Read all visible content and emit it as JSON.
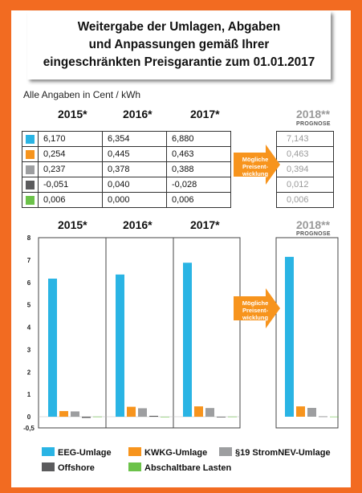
{
  "title_lines": [
    "Weitergabe der Umlagen, Abgaben",
    "und Anpassungen gemäß Ihrer",
    "eingeschränkten Preisgarantie zum 01.01.2017"
  ],
  "unit_label": "Alle Angaben in Cent / kWh",
  "years": [
    "2015*",
    "2016*",
    "2017*"
  ],
  "forecast_year": "2018**",
  "forecast_sub": "PROGNOSE",
  "arrow_text": [
    "Mögliche",
    "Preisent-",
    "wicklung"
  ],
  "table_rows": [
    {
      "color": "#2ab4e4",
      "v2015": "6,170",
      "v2016": "6,354",
      "v2017": "6,880",
      "v2018": "7,143"
    },
    {
      "color": "#f7941d",
      "v2015": "0,254",
      "v2016": "0,445",
      "v2017": "0,463",
      "v2018": "0,463"
    },
    {
      "color": "#9d9ea0",
      "v2015": "0,237",
      "v2016": "0,378",
      "v2017": "0,388",
      "v2018": "0,394"
    },
    {
      "color": "#5b5b5d",
      "v2015": "-0,051",
      "v2016": "0,040",
      "v2017": "-0,028",
      "v2018": "0,012"
    },
    {
      "color": "#6cc24a",
      "v2015": "0,006",
      "v2016": "0,000",
      "v2017": "0,006",
      "v2018": "0,006"
    }
  ],
  "chart_data": {
    "type": "bar",
    "categories": [
      "2015*",
      "2016*",
      "2017*",
      "2018**"
    ],
    "series": [
      {
        "name": "EEG-Umlage",
        "color": "#2ab4e4",
        "values": [
          6.17,
          6.354,
          6.88,
          7.143
        ]
      },
      {
        "name": "KWKG-Umlage",
        "color": "#f7941d",
        "values": [
          0.254,
          0.445,
          0.463,
          0.463
        ]
      },
      {
        "name": "§19 StromNEV-Umlage",
        "color": "#9d9ea0",
        "values": [
          0.237,
          0.378,
          0.388,
          0.394
        ]
      },
      {
        "name": "Offshore",
        "color": "#5b5b5d",
        "values": [
          -0.051,
          0.04,
          -0.028,
          0.012
        ]
      },
      {
        "name": "Abschaltbare Lasten",
        "color": "#6cc24a",
        "values": [
          0.006,
          0.0,
          0.006,
          0.006
        ]
      }
    ],
    "yticks": [
      "8",
      "7",
      "6",
      "5",
      "4",
      "3",
      "2",
      "1",
      "0",
      "-0,5"
    ],
    "ylim": [
      -0.5,
      8
    ],
    "grid": false,
    "legend": "bottom"
  }
}
